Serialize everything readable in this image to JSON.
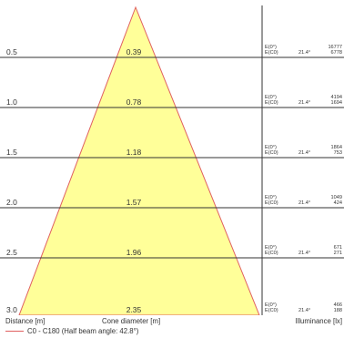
{
  "footer": {
    "distance_label": "Distance [m]",
    "cone_label": "Cone diameter [m]",
    "illuminance_label": "Illuminance [lx]",
    "legend_text": "C0 - C180 (Half beam angle: 42.8°)"
  },
  "colors": {
    "cone_fill": "#ffff99",
    "cone_edge": "#e06060",
    "grid_line": "#333333"
  },
  "rows": [
    {
      "distance": "0.5",
      "diameter": "0.39",
      "e0_label": "E(0°)",
      "ec0_label": "E(C0)",
      "angle": "21.4°",
      "e0": "16777",
      "ec0": "6778"
    },
    {
      "distance": "1.0",
      "diameter": "0.78",
      "e0_label": "E(0°)",
      "ec0_label": "E(C0)",
      "angle": "21.4°",
      "e0": "4194",
      "ec0": "1694"
    },
    {
      "distance": "1.5",
      "diameter": "1.18",
      "e0_label": "E(0°)",
      "ec0_label": "E(C0)",
      "angle": "21.4°",
      "e0": "1864",
      "ec0": "753"
    },
    {
      "distance": "2.0",
      "diameter": "1.57",
      "e0_label": "E(0°)",
      "ec0_label": "E(C0)",
      "angle": "21.4°",
      "e0": "1049",
      "ec0": "424"
    },
    {
      "distance": "2.5",
      "diameter": "1.96",
      "e0_label": "E(0°)",
      "ec0_label": "E(C0)",
      "angle": "21.4°",
      "e0": "671",
      "ec0": "271"
    },
    {
      "distance": "3.0",
      "diameter": "2.35",
      "e0_label": "E(0°)",
      "ec0_label": "E(C0)",
      "angle": "21.4°",
      "e0": "466",
      "ec0": "188"
    }
  ]
}
